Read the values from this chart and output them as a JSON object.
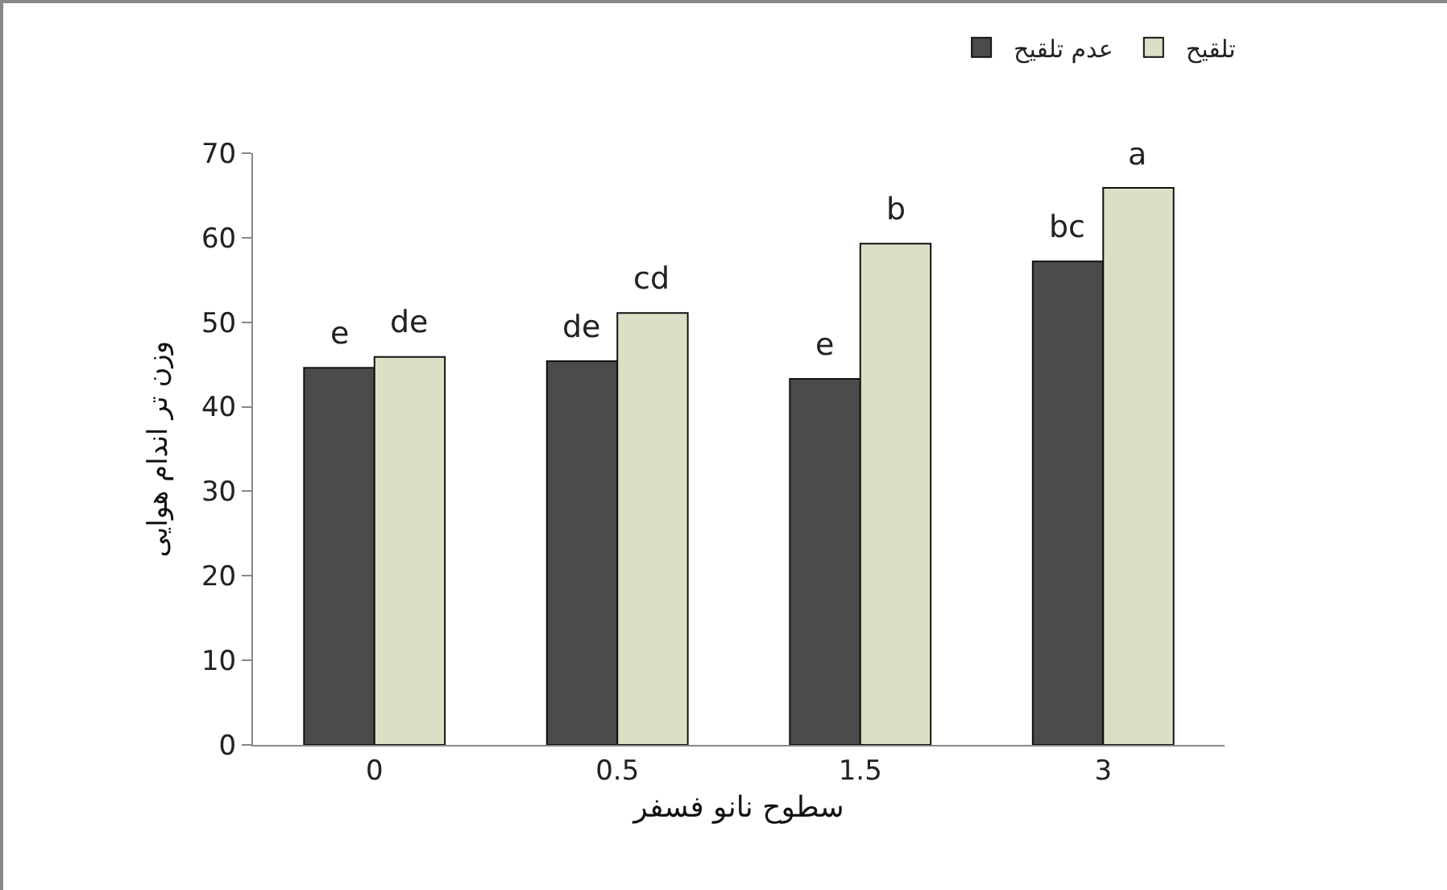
{
  "chart_data": {
    "type": "bar",
    "xlabel": "سطوح نانو فسفر",
    "ylabel": "وزن تر اندام هوایی",
    "categories": [
      "0",
      "0.5",
      "1.5",
      "3"
    ],
    "series": [
      {
        "name": "عدم تلقیح",
        "color": "#4b4b49",
        "values": [
          44.6,
          45.4,
          43.3,
          57.2
        ]
      },
      {
        "name": "تلقیح",
        "color": "#dcdfc6",
        "values": [
          45.9,
          51.1,
          59.3,
          65.9
        ]
      }
    ],
    "ylim": [
      0,
      70
    ],
    "yticks": [
      0,
      10,
      20,
      30,
      40,
      50,
      60,
      70
    ],
    "grid": false,
    "legend": "top right",
    "annotations": [
      {
        "text": "e",
        "x": "0",
        "y": 44.6
      },
      {
        "text": "de",
        "x": "0",
        "y": 45.9
      },
      {
        "text": "de",
        "x": "0.5",
        "y": 45.4
      },
      {
        "text": "cd",
        "x": "0.5",
        "y": 51.1
      },
      {
        "text": "e",
        "x": "1.5",
        "y": 43.3
      },
      {
        "text": "b",
        "x": "1.5",
        "y": 59.3
      },
      {
        "text": "bc",
        "x": "3",
        "y": 57.2
      },
      {
        "text": "a",
        "x": "3",
        "y": 65.9
      }
    ]
  }
}
